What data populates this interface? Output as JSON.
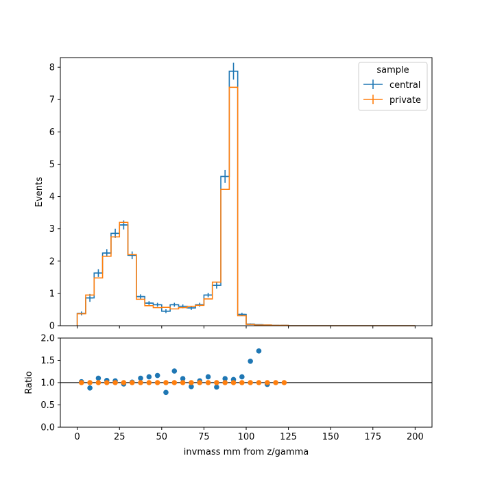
{
  "chart_data": [
    {
      "type": "step",
      "ylabel": "Events",
      "xlim": [
        -10,
        210
      ],
      "ylim": [
        0,
        8.3
      ],
      "x_ticks": [
        0,
        25,
        50,
        75,
        100,
        125,
        150,
        175,
        200
      ],
      "y_ticks": [
        0,
        1,
        2,
        3,
        4,
        5,
        6,
        7,
        8
      ],
      "bin_edges": [
        0,
        5,
        10,
        15,
        20,
        25,
        30,
        35,
        40,
        45,
        50,
        55,
        60,
        65,
        70,
        75,
        80,
        85,
        90,
        95,
        100,
        105,
        110,
        115,
        120,
        125,
        200
      ],
      "legend": {
        "title": "sample",
        "placement": "top-right"
      },
      "series": [
        {
          "name": "central",
          "color": "#1f77b4",
          "values": [
            0.38,
            0.86,
            1.63,
            2.25,
            2.86,
            3.12,
            2.18,
            0.9,
            0.7,
            0.65,
            0.45,
            0.65,
            0.6,
            0.55,
            0.65,
            0.95,
            1.25,
            4.62,
            7.88,
            0.35,
            0.05,
            0.03,
            0.02,
            0.01,
            0.01,
            0.0
          ],
          "errors": [
            0.06,
            0.12,
            0.12,
            0.12,
            0.14,
            0.14,
            0.12,
            0.07,
            0.06,
            0.06,
            0.06,
            0.06,
            0.06,
            0.06,
            0.06,
            0.07,
            0.1,
            0.2,
            0.26,
            0.05,
            0.02,
            0.01,
            0.01,
            0.005,
            0.005,
            0.0
          ]
        },
        {
          "name": "private",
          "color": "#ff7f0e",
          "values": [
            0.37,
            0.95,
            1.48,
            2.15,
            2.75,
            3.2,
            2.2,
            0.82,
            0.62,
            0.56,
            0.57,
            0.52,
            0.56,
            0.6,
            0.63,
            0.83,
            1.35,
            4.22,
            7.38,
            0.31,
            0.04,
            0.02,
            0.02,
            0.01,
            0.01,
            0.0
          ]
        }
      ]
    },
    {
      "type": "scatter",
      "xlabel": "invmass mm from z/gamma",
      "ylabel": "Ratio",
      "xlim": [
        -10,
        210
      ],
      "ylim": [
        0,
        2
      ],
      "x_ticks": [
        0,
        25,
        50,
        75,
        100,
        125,
        150,
        175,
        200
      ],
      "x_tick_labels": [
        "0",
        "25",
        "50",
        "75",
        "100",
        "125",
        "150",
        "175",
        "200"
      ],
      "y_ticks": [
        0.0,
        0.5,
        1.0,
        1.5,
        2.0
      ],
      "y_tick_labels": [
        "0.0",
        "0.5",
        "1.0",
        "1.5",
        "2.0"
      ],
      "reference_line": 1.0,
      "x": [
        2.5,
        7.5,
        12.5,
        17.5,
        22.5,
        27.5,
        32.5,
        37.5,
        42.5,
        47.5,
        52.5,
        57.5,
        62.5,
        67.5,
        72.5,
        77.5,
        82.5,
        87.5,
        92.5,
        97.5,
        102.5,
        107.5,
        112.5,
        117.5,
        122.5
      ],
      "series": [
        {
          "name": "central",
          "color": "#1f77b4",
          "values": [
            1.02,
            0.88,
            1.1,
            1.05,
            1.04,
            0.97,
            1.01,
            1.1,
            1.13,
            1.16,
            0.78,
            1.26,
            1.09,
            0.91,
            1.04,
            1.13,
            0.9,
            1.09,
            1.07,
            1.13,
            1.48,
            1.71,
            0.96,
            null,
            null
          ]
        },
        {
          "name": "private",
          "color": "#ff7f0e",
          "values": [
            1,
            1,
            1,
            1,
            1,
            1,
            1,
            1,
            1,
            1,
            1,
            1,
            1,
            1,
            1,
            1,
            1,
            1,
            1,
            1,
            1,
            1,
            1,
            1,
            1
          ]
        }
      ]
    }
  ]
}
